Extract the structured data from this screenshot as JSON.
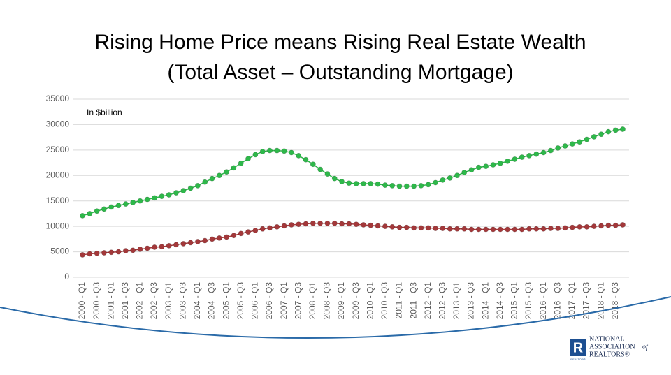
{
  "chart_data": {
    "type": "line",
    "title": "Rising Home Price means Rising Real Estate Wealth",
    "subtitle": "(Total Asset – Outstanding Mortgage)",
    "annotation": "In $billion",
    "categories": [
      "2000 - Q1",
      null,
      "2000 - Q3",
      null,
      "2001 - Q1",
      null,
      "2001 - Q3",
      null,
      "2002 - Q1",
      null,
      "2002 - Q3",
      null,
      "2003 - Q1",
      null,
      "2003 - Q3",
      null,
      "2004 - Q1",
      null,
      "2004 - Q3",
      null,
      "2005 - Q1",
      null,
      "2005 - Q3",
      null,
      "2006 - Q1",
      null,
      "2006 - Q3",
      null,
      "2007 - Q1",
      null,
      "2007 - Q3",
      null,
      "2008 - Q1",
      null,
      "2008 - Q3",
      null,
      "2009 - Q1",
      null,
      "2009 - Q3",
      null,
      "2010 - Q1",
      null,
      "2010 - Q3",
      null,
      "2011 - Q1",
      null,
      "2011 - Q3",
      null,
      "2012 - Q1",
      null,
      "2012 - Q3",
      null,
      "2013 - Q1",
      null,
      "2013 - Q3",
      null,
      "2014 - Q1",
      null,
      "2014 - Q3",
      null,
      "2015 - Q1",
      null,
      "2015 - Q3",
      null,
      "2016 - Q1",
      null,
      "2016 - Q3",
      null,
      "2017 - Q1",
      null,
      "2017 - Q3",
      null,
      "2018 - Q1",
      null,
      "2018 - Q3",
      null
    ],
    "series": [
      {
        "color": "#2eb84a",
        "values": [
          12100,
          12500,
          13000,
          13400,
          13800,
          14100,
          14400,
          14700,
          15000,
          15300,
          15600,
          15900,
          16200,
          16600,
          17000,
          17500,
          18000,
          18700,
          19400,
          20000,
          20700,
          21500,
          22400,
          23300,
          24100,
          24700,
          24900,
          24900,
          24800,
          24500,
          23900,
          23100,
          22200,
          21200,
          20300,
          19400,
          18800,
          18500,
          18400,
          18400,
          18400,
          18300,
          18100,
          18000,
          17900,
          17900,
          17900,
          18000,
          18200,
          18600,
          19100,
          19500,
          20000,
          20600,
          21100,
          21600,
          21800,
          22100,
          22400,
          22800,
          23200,
          23600,
          23900,
          24200,
          24500,
          24900,
          25400,
          25800,
          26200,
          26600,
          27100,
          27600,
          28100,
          28600,
          28900,
          29100
        ]
      },
      {
        "color": "#a3383a",
        "values": [
          4400,
          4600,
          4700,
          4800,
          4900,
          5000,
          5200,
          5300,
          5500,
          5700,
          5900,
          6000,
          6200,
          6400,
          6600,
          6800,
          7000,
          7200,
          7500,
          7700,
          7900,
          8200,
          8600,
          8900,
          9200,
          9500,
          9700,
          9900,
          10100,
          10300,
          10400,
          10500,
          10600,
          10600,
          10600,
          10600,
          10500,
          10500,
          10400,
          10300,
          10200,
          10100,
          10000,
          9900,
          9800,
          9800,
          9700,
          9700,
          9700,
          9600,
          9600,
          9500,
          9500,
          9500,
          9400,
          9400,
          9400,
          9400,
          9400,
          9400,
          9400,
          9400,
          9500,
          9500,
          9500,
          9600,
          9600,
          9700,
          9800,
          9900,
          9900,
          10000,
          10100,
          10200,
          10200,
          10300
        ]
      }
    ],
    "ylim": [
      0,
      35000
    ],
    "yticks": [
      0,
      5000,
      10000,
      15000,
      20000,
      25000,
      30000,
      35000
    ],
    "grid": true
  },
  "logo": {
    "line1": "NATIONAL",
    "line2": "ASSOCIATION",
    "line2_suffix": "of",
    "line3": "REALTORS®",
    "mark": "REALTOR®"
  }
}
